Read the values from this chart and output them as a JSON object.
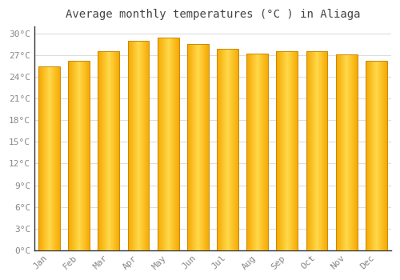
{
  "months": [
    "Jan",
    "Feb",
    "Mar",
    "Apr",
    "May",
    "Jun",
    "Jul",
    "Aug",
    "Sep",
    "Oct",
    "Nov",
    "Dec"
  ],
  "values": [
    25.5,
    26.2,
    27.6,
    29.0,
    29.5,
    28.6,
    27.9,
    27.2,
    27.6,
    27.6,
    27.1,
    26.2
  ],
  "title": "Average monthly temperatures (°C ) in Aliaga",
  "ylim": [
    0,
    31
  ],
  "yticks": [
    0,
    3,
    6,
    9,
    12,
    15,
    18,
    21,
    24,
    27,
    30
  ],
  "bar_color_center": "#FFD84A",
  "bar_color_edge": "#F5A800",
  "bar_edge_color": "#C8880A",
  "background_color": "#FFFFFF",
  "plot_bg_color": "#FFFFFF",
  "grid_color": "#DDDDDD",
  "title_fontsize": 10,
  "tick_fontsize": 8,
  "tick_color": "#888888",
  "title_color": "#444444"
}
